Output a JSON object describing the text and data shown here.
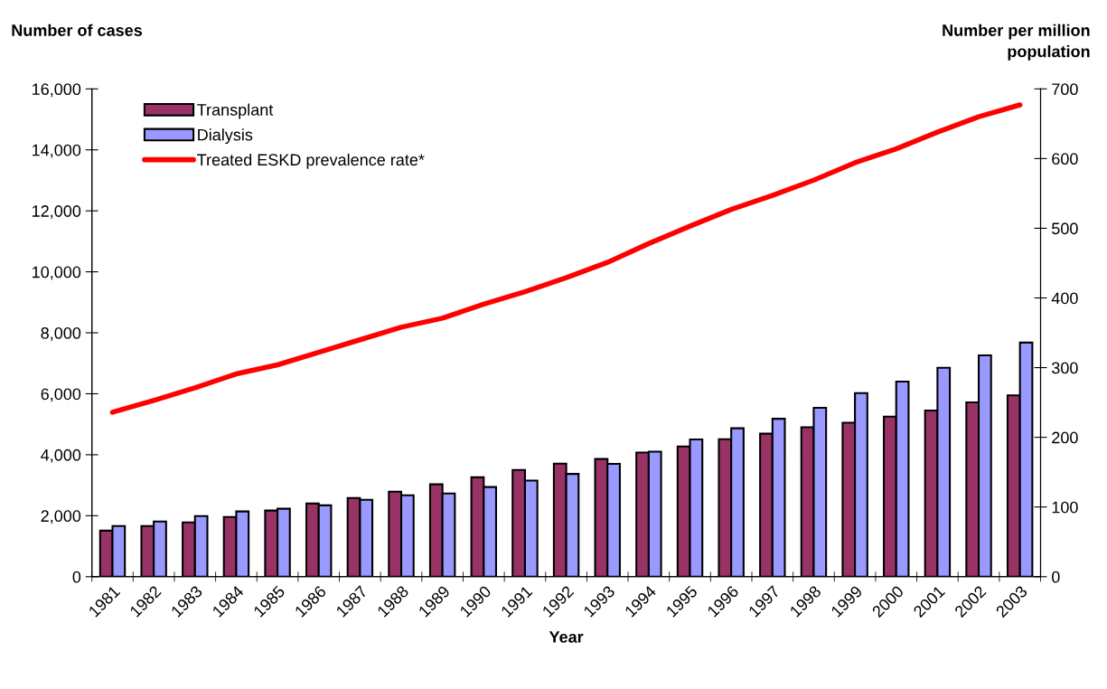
{
  "chart_data": {
    "type": "bar",
    "xlabel": "Year",
    "ylabel": "Number of cases",
    "y2label": "Number per million\npopulation",
    "categories": [
      "1981",
      "1982",
      "1983",
      "1984",
      "1985",
      "1986",
      "1987",
      "1988",
      "1989",
      "1990",
      "1991",
      "1992",
      "1993",
      "1994",
      "1995",
      "1996",
      "1997",
      "1998",
      "1999",
      "2000",
      "2001",
      "2002",
      "2003"
    ],
    "series": [
      {
        "name": "Transplant",
        "color": "#993366",
        "values": [
          1510,
          1660,
          1780,
          1960,
          2170,
          2400,
          2580,
          2790,
          3030,
          3260,
          3500,
          3710,
          3860,
          4070,
          4270,
          4510,
          4690,
          4900,
          5050,
          5250,
          5450,
          5720,
          5950
        ]
      },
      {
        "name": "Dialysis",
        "color": "#9999ff",
        "values": [
          1660,
          1810,
          1990,
          2140,
          2230,
          2340,
          2520,
          2670,
          2730,
          2940,
          3150,
          3370,
          3700,
          4100,
          4500,
          4870,
          5180,
          5540,
          6020,
          6400,
          6850,
          7260,
          7680
        ]
      },
      {
        "name": "Treated ESKD prevalence rate*",
        "type": "line",
        "axis": "y2",
        "color": "#ff0000",
        "values": [
          236,
          253,
          271,
          291,
          304,
          322,
          340,
          358,
          371,
          391,
          409,
          429,
          451,
          478,
          503,
          527,
          547,
          569,
          594,
          614,
          638,
          660,
          677
        ]
      }
    ],
    "ylim": [
      0,
      16000
    ],
    "yticks": [
      0,
      {
        "value": 2000,
        "label": "2,000"
      },
      {
        "value": 4000,
        "label": "4,000"
      },
      {
        "value": 6000,
        "label": "6,000"
      },
      {
        "value": 8000,
        "label": "8,000"
      },
      {
        "value": 10000,
        "label": "10,000"
      },
      {
        "value": 12000,
        "label": "12,000"
      },
      {
        "value": 14000,
        "label": "14,000"
      },
      {
        "value": 16000,
        "label": "16,000"
      }
    ],
    "y2lim": [
      0,
      700
    ],
    "y2ticks": [
      0,
      100,
      200,
      300,
      400,
      500,
      600,
      700
    ],
    "legend": "top left",
    "grid": false
  }
}
